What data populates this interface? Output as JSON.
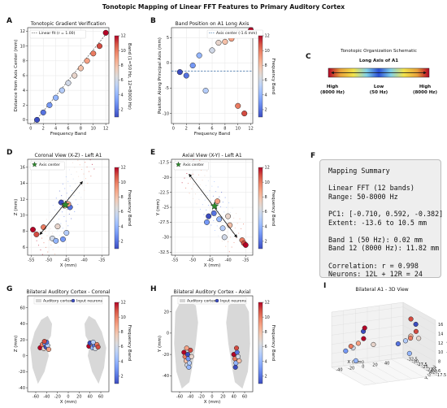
{
  "suptitle": "Tonotopic Mapping of Linear FFT Features to Primary Auditory Cortex",
  "colors": {
    "colormap": [
      "#3b4cc0",
      "#5977e3",
      "#7b9ff9",
      "#9ebeff",
      "#c0d4f5",
      "#dddcdc",
      "#f2cbb7",
      "#f7ac8e",
      "#ee8468",
      "#d65244",
      "#b40426"
    ],
    "grey_region": "#d4d4d4",
    "dashed_line": "#3a6ea5"
  },
  "panel_letters": {
    "A": "A",
    "B": "B",
    "C": "C",
    "D": "D",
    "E": "E",
    "F": "F",
    "G": "G",
    "H": "H",
    "I": "I"
  },
  "chart_data": [
    {
      "id": "A",
      "type": "scatter",
      "title": "Tonotopic Gradient Verification",
      "xlabel": "Frequency Band",
      "ylabel": "Distance from Axis Center (mm)",
      "xlim": [
        -0.5,
        12.5
      ],
      "ylim": [
        -0.5,
        12.5
      ],
      "xticks": [
        0,
        2,
        4,
        6,
        8,
        10,
        12
      ],
      "yticks": [
        0,
        2,
        4,
        6,
        8,
        10,
        12
      ],
      "x": [
        1,
        2,
        3,
        4,
        5,
        6,
        7,
        8,
        9,
        10,
        11,
        12
      ],
      "y": [
        0,
        1,
        2,
        3,
        4,
        5,
        6,
        7,
        8,
        9,
        10,
        11.8
      ],
      "band": [
        1,
        2,
        3,
        4,
        5,
        6,
        7,
        8,
        9,
        10,
        11,
        12
      ],
      "fit_line": {
        "x": [
          0.5,
          12.3
        ],
        "y": [
          -0.4,
          11.9
        ]
      },
      "legend": [
        "Linear fit (r = 1.00)"
      ],
      "colorbar": {
        "label": "Band (1=50 Hz, 12=8000 Hz)",
        "ticks": [
          2,
          4,
          6,
          8,
          10,
          12
        ],
        "range": [
          1,
          12
        ]
      }
    },
    {
      "id": "B",
      "type": "scatter",
      "title": "Band Position on A1 Long Axis",
      "xlabel": "Frequency Band",
      "ylabel": "Position Along Principal Axis (mm)",
      "xlim": [
        -0.3,
        12.3
      ],
      "ylim": [
        -12,
        7
      ],
      "xticks": [
        0,
        2,
        4,
        6,
        8,
        10,
        12
      ],
      "yticks": [
        -10,
        -5,
        0,
        5
      ],
      "x": [
        1,
        2,
        3,
        4,
        5,
        6,
        7,
        8,
        9,
        10,
        11,
        12
      ],
      "y": [
        -1.8,
        -2.5,
        -0.5,
        1.5,
        -5.5,
        2.5,
        4.0,
        4.2,
        4.8,
        -8.5,
        -10.0,
        6.5
      ],
      "band": [
        1,
        2,
        3,
        4,
        5,
        6,
        7,
        8,
        9,
        10,
        11,
        12
      ],
      "hline": -1.6,
      "legend": [
        "Axis center (-1.6 mm)"
      ],
      "colorbar": {
        "label": "Frequency Band",
        "ticks": [
          2,
          4,
          6,
          8,
          10,
          12
        ],
        "range": [
          1,
          12
        ]
      }
    },
    {
      "id": "C",
      "type": "schematic",
      "title": "Tonotopic Organization Schematic",
      "subtitle": "Long Axis of A1",
      "labels": [
        {
          "text": "High",
          "sub": "(8000 Hz)",
          "color": "#c0102a"
        },
        {
          "text": "Low",
          "sub": "(50 Hz)",
          "color": "#2a58b6"
        },
        {
          "text": "High",
          "sub": "(8000 Hz)",
          "color": "#c0102a"
        }
      ]
    },
    {
      "id": "D",
      "type": "scatter",
      "title": "Coronal View (X-Z) - Left A1",
      "xlabel": "X (mm)",
      "ylabel": "Z (mm)",
      "xlim": [
        -56,
        -33
      ],
      "ylim": [
        5,
        17
      ],
      "xticks": [
        -55,
        -50,
        -45,
        -40,
        -35
      ],
      "yticks": [
        6,
        8,
        10,
        12,
        14,
        16
      ],
      "x": [
        -54.5,
        -53.5,
        -51.5,
        -49.0,
        -48.0,
        -46.0,
        -47.5,
        -45.0,
        -44.0,
        -46.5,
        -45.5,
        -44.5
      ],
      "y": [
        8.2,
        7.6,
        8.5,
        7.1,
        6.8,
        7.0,
        8.6,
        7.8,
        11.0,
        11.6,
        11.2,
        11.4
      ],
      "band": [
        12,
        11,
        10,
        6,
        4,
        3,
        7,
        5,
        2,
        1,
        8,
        9
      ],
      "center": [
        -45.3,
        11.3
      ],
      "arrow": {
        "from": [
          -40.5,
          14.2
        ],
        "to": [
          -52.5,
          7.6
        ]
      },
      "legend": [
        "Axis center"
      ],
      "colorbar": {
        "label": "Frequency Band",
        "ticks": [
          2,
          4,
          6,
          8,
          10,
          12
        ],
        "range": [
          1,
          12
        ]
      }
    },
    {
      "id": "E",
      "type": "scatter",
      "title": "Axial View (X-Y) - Left A1",
      "xlabel": "X (mm)",
      "ylabel": "Y (mm)",
      "xlim": [
        -56,
        -33
      ],
      "ylim": [
        -33,
        -17
      ],
      "xticks": [
        -55,
        -50,
        -45,
        -40,
        -35
      ],
      "yticks": [
        -32.5,
        -30.0,
        -27.5,
        -25.0,
        -22.5,
        -20.0,
        -17.5
      ],
      "x": [
        -45.5,
        -44.0,
        -46.0,
        -42.5,
        -41.5,
        -41.0,
        -40.0,
        -39.5,
        -43.0,
        -36.0,
        -35.5,
        -35.0
      ],
      "y": [
        -26.5,
        -26.0,
        -27.5,
        -27.0,
        -28.5,
        -30.0,
        -26.5,
        -28.0,
        -24.0,
        -30.5,
        -31.0,
        -31.3
      ],
      "band": [
        1,
        2,
        3,
        4,
        5,
        6,
        7,
        8,
        9,
        10,
        11,
        12
      ],
      "center": [
        -43.8,
        -24.8
      ],
      "arrow": {
        "from": [
          -51.0,
          -19.5
        ],
        "to": [
          -37.5,
          -30.0
        ]
      },
      "legend": [
        "Axis center"
      ],
      "colorbar": {
        "label": "Frequency Band",
        "ticks": [
          2,
          4,
          6,
          8,
          10,
          12
        ],
        "range": [
          1,
          12
        ]
      }
    },
    {
      "id": "G",
      "type": "scatter",
      "title": "Bilateral Auditory Cortex - Coronal",
      "xlabel": "X (mm)",
      "ylabel": "Z (mm)",
      "xlim": [
        -75,
        75
      ],
      "ylim": [
        -45,
        75
      ],
      "xticks": [
        -60,
        -40,
        -20,
        0,
        20,
        40,
        60
      ],
      "yticks": [
        -40,
        -20,
        0,
        20,
        40,
        60
      ],
      "x": [
        -52,
        -48,
        -45,
        -43,
        -41,
        -38,
        -36,
        -40,
        -44,
        38,
        42,
        45,
        48,
        50,
        53,
        55,
        40,
        46
      ],
      "y": [
        10,
        14,
        9,
        15,
        11,
        13,
        8,
        17,
        18,
        12,
        15,
        10,
        13,
        9,
        14,
        11,
        16,
        17
      ],
      "band": [
        12,
        10,
        7,
        3,
        1,
        5,
        9,
        2,
        11,
        12,
        8,
        4,
        2,
        6,
        10,
        11,
        1,
        5
      ],
      "legend": [
        "Auditory cortex",
        "Input neurons"
      ],
      "colorbar": {
        "label": "Frequency Band",
        "ticks": [
          2,
          4,
          6,
          8,
          10,
          12
        ],
        "range": [
          1,
          12
        ]
      }
    },
    {
      "id": "H",
      "type": "scatter",
      "title": "Bilateral Auditory Cortex - Axial",
      "xlabel": "X (mm)",
      "ylabel": "Y (mm)",
      "xlim": [
        -75,
        75
      ],
      "ylim": [
        -55,
        35
      ],
      "xticks": [
        -60,
        -40,
        -20,
        0,
        20,
        40,
        60
      ],
      "yticks": [
        -40,
        -20,
        0,
        20
      ],
      "x": [
        -52,
        -50,
        -48,
        -46,
        -45,
        -44,
        -42,
        -40,
        -38,
        -47,
        -43,
        40,
        42,
        44,
        46,
        48,
        50,
        45,
        43
      ],
      "y": [
        -18,
        -22,
        -26,
        -30,
        -20,
        -24,
        -28,
        -16,
        -22,
        -14,
        -32,
        -20,
        -24,
        -28,
        -18,
        -22,
        -26,
        -14,
        -32
      ],
      "band": [
        12,
        10,
        8,
        6,
        1,
        3,
        5,
        11,
        7,
        9,
        4,
        12,
        10,
        4,
        2,
        6,
        8,
        11,
        1
      ],
      "legend": [
        "Auditory cortex",
        "Input neurons"
      ],
      "colorbar": {
        "label": "Frequency Band",
        "ticks": [
          2,
          4,
          6,
          8,
          10,
          12
        ],
        "range": [
          1,
          12
        ]
      }
    },
    {
      "id": "I",
      "type": "scatter3d",
      "title": "Bilateral A1 - 3D View",
      "xlabel": "X (mm)",
      "ylabel": "Y (mm)",
      "zlabel": "Z (mm)",
      "xticks": [
        -40,
        -20,
        0,
        20,
        40
      ],
      "yticks": [
        -32.5,
        -30.0,
        -27.5,
        -25.0,
        -22.5,
        -20.0,
        -17.5
      ],
      "zticks": [
        6,
        8,
        10,
        12,
        14,
        16
      ],
      "x": [
        -48,
        -44,
        -40,
        -46,
        -42,
        -50,
        -38,
        -45,
        40,
        44,
        48,
        42,
        46,
        50,
        38,
        45,
        -43,
        41
      ],
      "y": [
        -20,
        -24,
        -28,
        -30,
        -22,
        -26,
        -18,
        -25,
        -20,
        -24,
        -28,
        -30,
        -22,
        -26,
        -18,
        -25,
        -21,
        -23
      ],
      "z": [
        14,
        12,
        10,
        9,
        15,
        11,
        13,
        8,
        14,
        12,
        10,
        9,
        15,
        11,
        13,
        8,
        16,
        16
      ],
      "band": [
        12,
        9,
        6,
        3,
        1,
        10,
        7,
        4,
        11,
        8,
        5,
        2,
        1,
        10,
        7,
        4,
        12,
        11
      ]
    }
  ],
  "summary": {
    "lines": [
      "Mapping Summary",
      "",
      "Linear FFT (12 bands)",
      "Range: 50-8000 Hz",
      "",
      "PC1: [-0.710, 0.592, -0.382]",
      "Extent: -13.6 to 10.5 mm",
      "",
      "Band 1 (50 Hz): 0.02 mm",
      "Band 12 (8000 Hz): 11.82 mm",
      "",
      "Correlation: r = 0.998",
      "Neurons: 12L + 12R = 24"
    ]
  }
}
